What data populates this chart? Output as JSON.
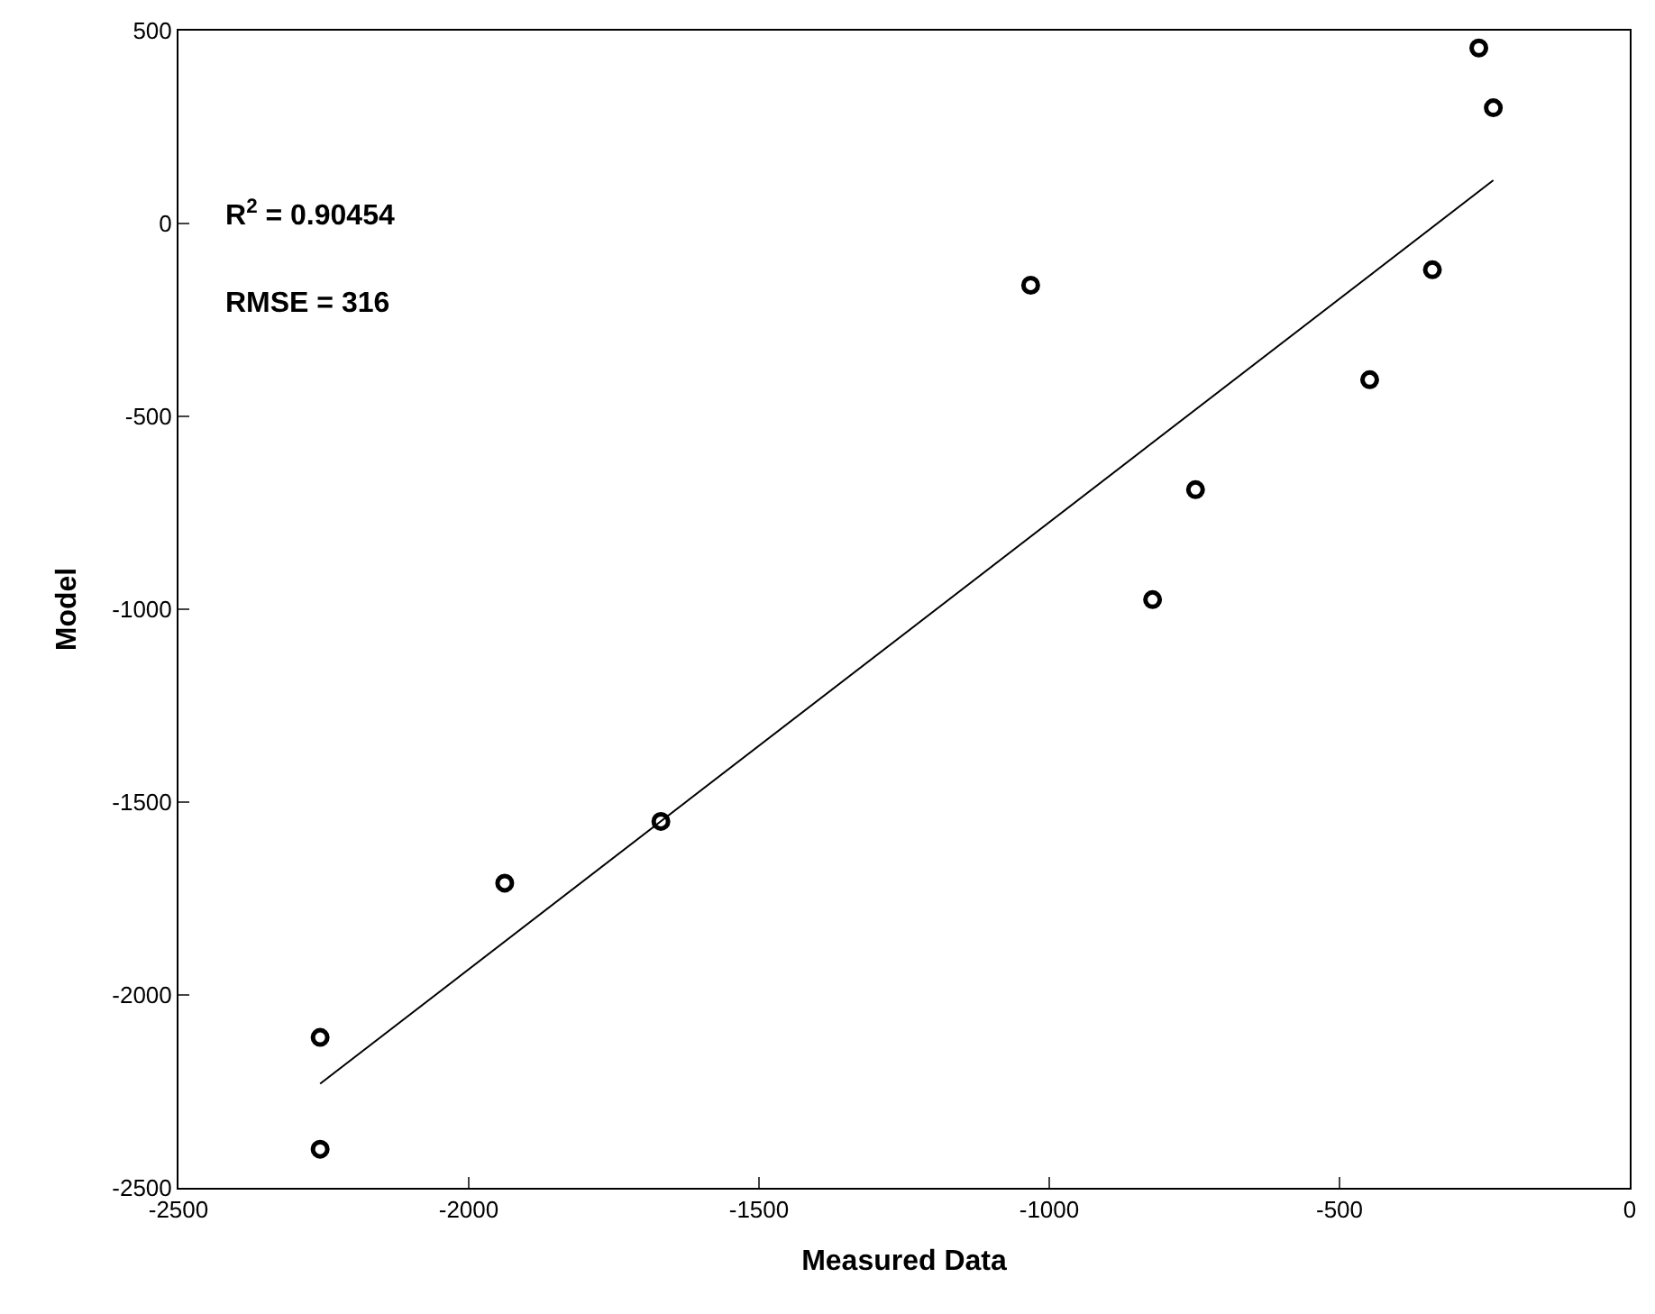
{
  "chart_data": {
    "type": "scatter",
    "xlabel": "Measured Data",
    "ylabel": "Model",
    "annotations": [
      "R$^{2}$ = 0.90454",
      "RMSE = 316"
    ],
    "series": [
      {
        "color": "#000000",
        "marker": "circle",
        "x": [
          -2256,
          -2256,
          -1938,
          -1669,
          -1032,
          -822,
          -748,
          -448,
          -340,
          -260,
          -235
        ],
        "values": [
          -2400,
          -2110,
          -1710,
          -1550,
          -160,
          -975,
          -690,
          -405,
          -120,
          455,
          300
        ]
      },
      {
        "type": "line",
        "color": "#000000",
        "x": [
          -2256,
          -235
        ],
        "values": [
          -2230,
          112
        ]
      }
    ],
    "xlim": [
      -2500,
      0
    ],
    "xticks": [
      -2500,
      -2000,
      -1500,
      -1000,
      -500,
      0
    ],
    "ylim": [
      -2500,
      500
    ],
    "yticks": [
      -2500,
      -2000,
      -1500,
      -1000,
      -500,
      0,
      500
    ],
    "tick_labels": "xy"
  }
}
